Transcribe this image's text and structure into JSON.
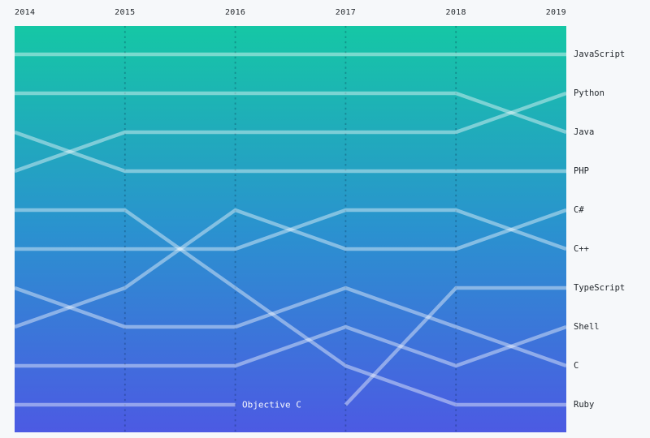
{
  "page": {
    "background": "#f6f8fa",
    "text_color": "#24292e"
  },
  "colors": {
    "gradient_top": "#15c7a5",
    "gradient_mid": "#2a92cf",
    "gradient_bottom": "#4c5ae3",
    "line": "rgba(255,255,255,0.42)",
    "dashed_gridline": "rgba(0,30,60,0.28)",
    "annotation_text": "rgba(255,255,255,0.95)"
  },
  "chart_data": {
    "type": "line",
    "subtype": "bump-rank-chart",
    "title": "",
    "xlabel": "",
    "ylabel": "",
    "categories": [
      "2014",
      "2015",
      "2016",
      "2017",
      "2018",
      "2019"
    ],
    "rank_range": [
      1,
      10
    ],
    "grid": "vertical-dashed-at-inner-years",
    "legend_position": "right-edge-labels",
    "series": [
      {
        "name": "JavaScript",
        "ranks": [
          1,
          1,
          1,
          1,
          1,
          1
        ]
      },
      {
        "name": "Python",
        "ranks": [
          4,
          3,
          3,
          3,
          3,
          2
        ]
      },
      {
        "name": "Java",
        "ranks": [
          2,
          2,
          2,
          2,
          2,
          3
        ]
      },
      {
        "name": "PHP",
        "ranks": [
          3,
          4,
          4,
          4,
          4,
          4
        ]
      },
      {
        "name": "C#",
        "ranks": [
          8,
          7,
          5,
          6,
          6,
          5
        ]
      },
      {
        "name": "C++",
        "ranks": [
          6,
          6,
          6,
          5,
          5,
          6
        ]
      },
      {
        "name": "TypeScript",
        "ranks": [
          null,
          null,
          null,
          10,
          7,
          7
        ]
      },
      {
        "name": "Shell",
        "ranks": [
          9,
          9,
          9,
          8,
          9,
          8
        ]
      },
      {
        "name": "C",
        "ranks": [
          7,
          8,
          8,
          7,
          8,
          9
        ]
      },
      {
        "name": "Ruby",
        "ranks": [
          5,
          5,
          7,
          9,
          10,
          10
        ]
      },
      {
        "name": "Objective C",
        "ranks": [
          10,
          10,
          10,
          null,
          null,
          null
        ]
      }
    ],
    "right_labels": [
      "JavaScript",
      "Python",
      "Java",
      "PHP",
      "C#",
      "C++",
      "TypeScript",
      "Shell",
      "C",
      "Ruby"
    ],
    "annotations": [
      {
        "text": "Objective C",
        "year_position": 2.06,
        "rank": 10
      }
    ]
  }
}
